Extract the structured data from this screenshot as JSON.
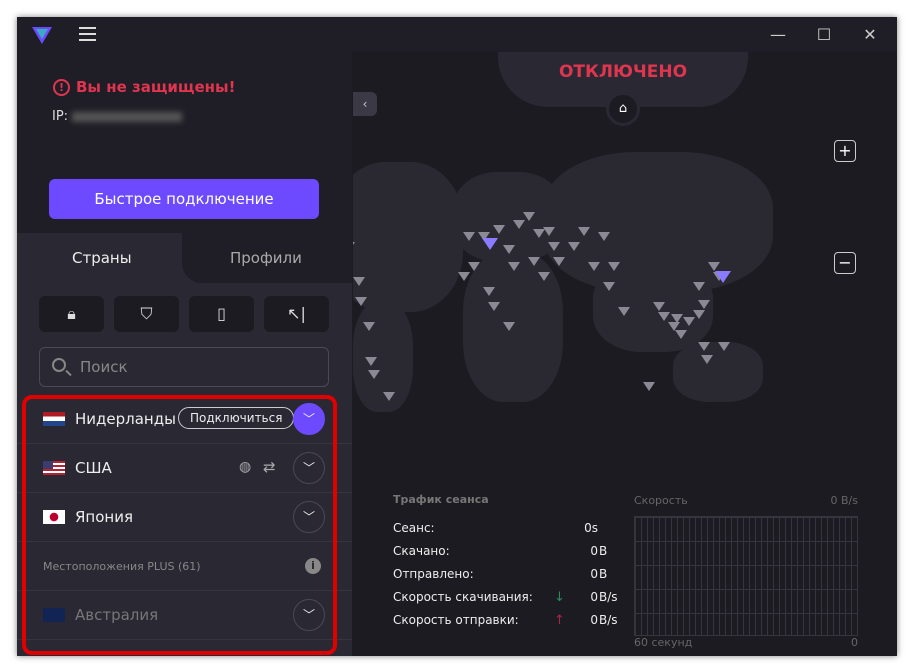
{
  "titlebar": {
    "logo": "protonvpn-logo",
    "menu": "hamburger-icon",
    "controls": [
      "minimize",
      "maximize",
      "close"
    ]
  },
  "status": {
    "warning": "Вы не защищены!",
    "ip_label": "IP:",
    "quick_connect": "Быстрое подключение",
    "connection": "ОТКЛЮЧЕНО"
  },
  "tabs": [
    {
      "label": "Страны",
      "active": true
    },
    {
      "label": "Профили",
      "active": false
    }
  ],
  "filters": [
    "lock-icon",
    "shield-icon",
    "secure-core-icon",
    "split-tunnel-icon"
  ],
  "search": {
    "placeholder": "Поиск"
  },
  "countries": [
    {
      "name": "Нидерланды",
      "connect_label": "Подключиться",
      "expanded": true
    },
    {
      "name": "США",
      "features": [
        "tor-icon",
        "p2p-icon"
      ]
    },
    {
      "name": "Япония"
    }
  ],
  "plus_section": {
    "label": "Местоположения PLUS (61)"
  },
  "plus_countries": [
    {
      "name": "Австралия"
    }
  ],
  "traffic": {
    "title": "Трафик сеанса",
    "rows": [
      {
        "label": "Сеанс:",
        "value": "0s",
        "unit": ""
      },
      {
        "label": "Скачано:",
        "value": "0",
        "unit": "B"
      },
      {
        "label": "Отправлено:",
        "value": "0",
        "unit": "B"
      },
      {
        "label": "Скорость скачивания:",
        "value": "0",
        "unit": "B/s"
      },
      {
        "label": "Скорость отправки:",
        "value": "0",
        "unit": "B/s"
      }
    ],
    "graph_title": "Скорость",
    "graph_max": "0  B/s",
    "graph_x_label": "60 секунд",
    "graph_x_end": "0"
  },
  "colors": {
    "accent": "#6d4aff",
    "danger": "#e0354f",
    "down": "#2e8b57",
    "up": "#a3283f",
    "highlight": "#e00000"
  }
}
